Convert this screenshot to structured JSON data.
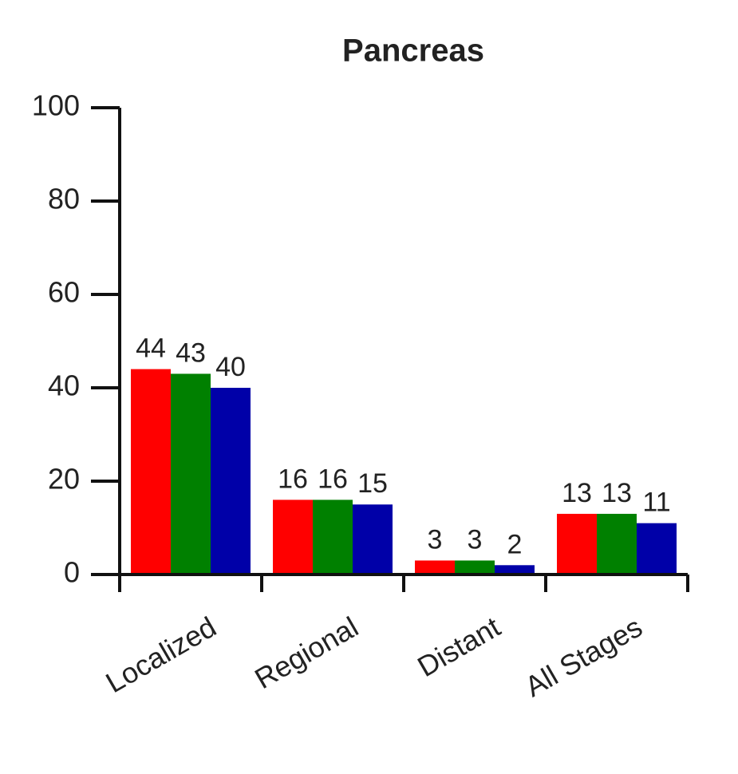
{
  "chart_data": {
    "type": "bar",
    "title": "Pancreas",
    "categories": [
      "Localized",
      "Regional",
      "Distant",
      "All Stages"
    ],
    "series": [
      {
        "color": "#ff0000",
        "values": [
          44,
          16,
          3,
          13
        ]
      },
      {
        "color": "#008000",
        "values": [
          43,
          16,
          3,
          13
        ]
      },
      {
        "color": "#0000a8",
        "values": [
          40,
          15,
          2,
          11
        ]
      }
    ],
    "ylim": [
      0,
      100
    ],
    "yticks": [
      0,
      20,
      40,
      60,
      80,
      100
    ]
  }
}
